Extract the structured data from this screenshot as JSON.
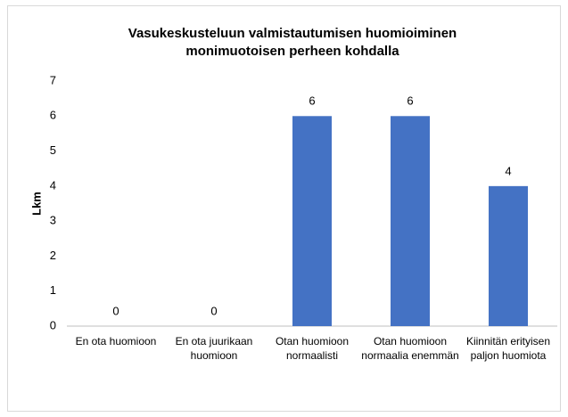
{
  "chart_data": {
    "type": "bar",
    "title": "Vasukeskusteluun valmistautumisen huomioiminen monimuotoisen perheen kohdalla",
    "y_label": "Lkm",
    "categories": [
      "En ota huomioon",
      "En ota juurikaan huomioon",
      "Otan huomioon normaalisti",
      "Otan huomioon normaalia enemmän",
      "Kiinnitän erityisen paljon huomiota"
    ],
    "values": [
      0,
      0,
      6,
      6,
      4
    ],
    "color": "#4472c4",
    "ylim": [
      0,
      7
    ],
    "yticks": [
      0,
      1,
      2,
      3,
      4,
      5,
      6,
      7
    ],
    "grid": false
  }
}
